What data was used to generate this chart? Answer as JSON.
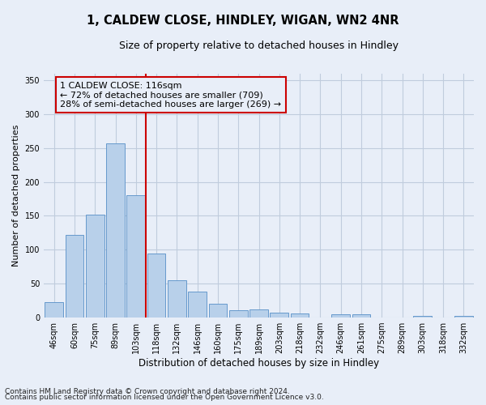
{
  "title": "1, CALDEW CLOSE, HINDLEY, WIGAN, WN2 4NR",
  "subtitle": "Size of property relative to detached houses in Hindley",
  "xlabel": "Distribution of detached houses by size in Hindley",
  "ylabel": "Number of detached properties",
  "categories": [
    "46sqm",
    "60sqm",
    "75sqm",
    "89sqm",
    "103sqm",
    "118sqm",
    "132sqm",
    "146sqm",
    "160sqm",
    "175sqm",
    "189sqm",
    "203sqm",
    "218sqm",
    "232sqm",
    "246sqm",
    "261sqm",
    "275sqm",
    "289sqm",
    "303sqm",
    "318sqm",
    "332sqm"
  ],
  "values": [
    23,
    122,
    152,
    257,
    180,
    95,
    55,
    38,
    20,
    11,
    12,
    7,
    6,
    0,
    5,
    5,
    0,
    0,
    3,
    0,
    2
  ],
  "bar_color": "#b8d0ea",
  "bar_edge_color": "#6699cc",
  "vline_index": 4.5,
  "annotation_text": "1 CALDEW CLOSE: 116sqm\n← 72% of detached houses are smaller (709)\n28% of semi-detached houses are larger (269) →",
  "ylim": [
    0,
    360
  ],
  "footnote1": "Contains HM Land Registry data © Crown copyright and database right 2024.",
  "footnote2": "Contains public sector information licensed under the Open Government Licence v3.0.",
  "background_color": "#e8eef8",
  "plot_bg_color": "#e8eef8",
  "grid_color": "#c0ccdd",
  "annotation_box_color": "#cc0000",
  "vline_color": "#cc0000",
  "title_fontsize": 10.5,
  "subtitle_fontsize": 9,
  "ylabel_fontsize": 8,
  "xlabel_fontsize": 8.5,
  "tick_fontsize": 7,
  "annotation_fontsize": 8,
  "footnote_fontsize": 6.5
}
